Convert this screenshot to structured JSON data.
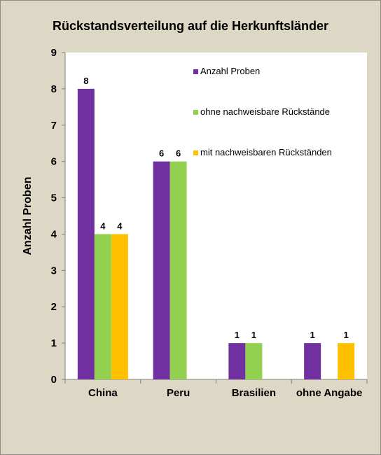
{
  "chart_data": {
    "type": "bar",
    "title": "Rückstandsverteilung auf die Herkunftsländer",
    "xlabel": "",
    "ylabel": "Anzahl Proben",
    "ylim": [
      0,
      9
    ],
    "yticks": [
      0,
      1,
      2,
      3,
      4,
      5,
      6,
      7,
      8,
      9
    ],
    "categories": [
      "China",
      "Peru",
      "Brasilien",
      "ohne Angabe"
    ],
    "series": [
      {
        "name": "Anzahl Proben",
        "color": "#7030a0",
        "values": [
          8,
          6,
          1,
          1
        ]
      },
      {
        "name": "ohne nachweisbare Rückstände",
        "color": "#92d050",
        "values": [
          4,
          6,
          1,
          null
        ]
      },
      {
        "name": "mit nachweisbaren Rückständen",
        "color": "#ffc000",
        "values": [
          4,
          null,
          null,
          1
        ]
      }
    ],
    "grid": false,
    "legend": "top-right inside plot",
    "plot_background": "#ffffff"
  }
}
